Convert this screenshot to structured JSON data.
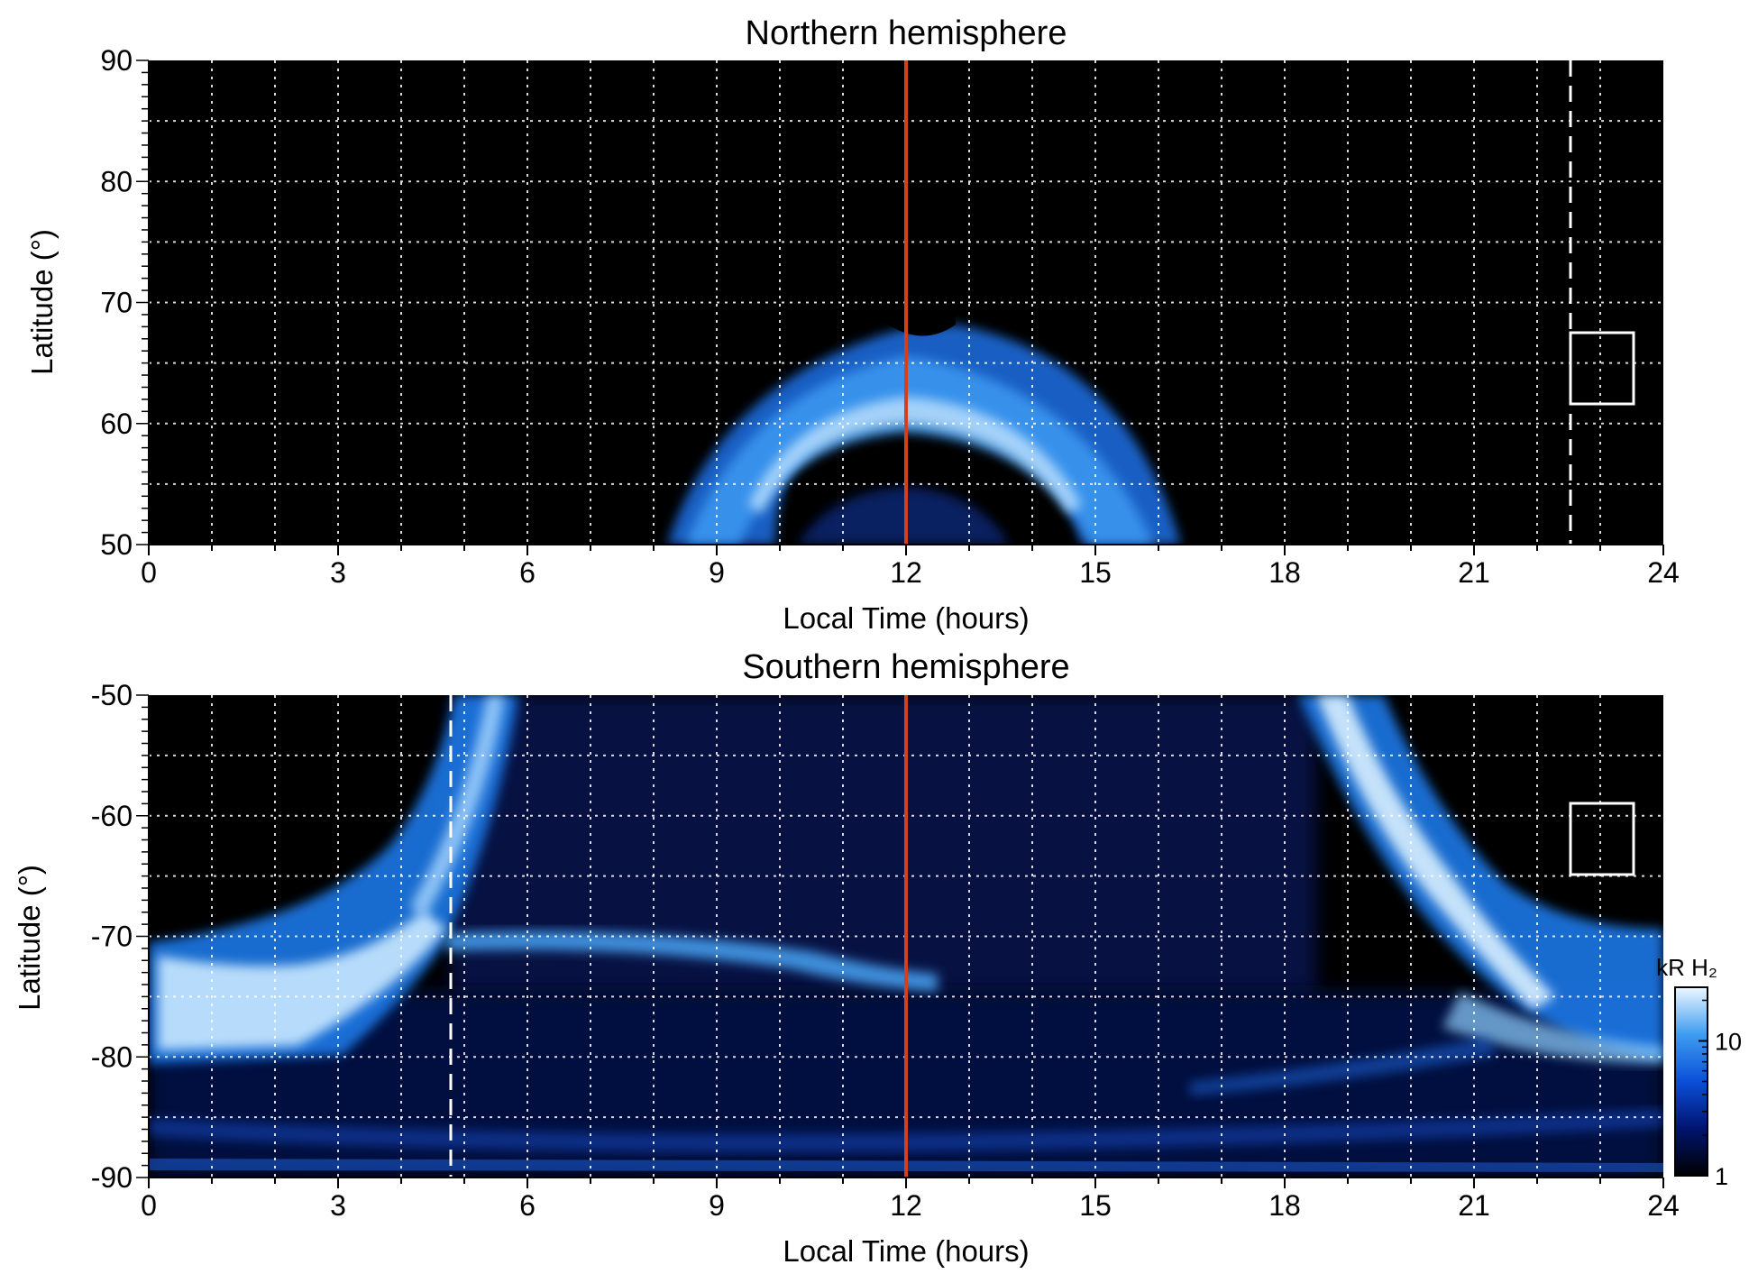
{
  "chart_data": [
    {
      "type": "heatmap",
      "title": "Northern hemisphere",
      "xlabel": "Local Time (hours)",
      "ylabel": "Latitude (°)",
      "xlim": [
        0,
        24
      ],
      "ylim": [
        50,
        90
      ],
      "xticks": [
        "0",
        "3",
        "6",
        "9",
        "12",
        "15",
        "18",
        "21",
        "24"
      ],
      "yticks": [
        "50",
        "60",
        "70",
        "80",
        "90"
      ],
      "grid": true,
      "noon_line_lt": 12,
      "noon_line_color": "#d2401c",
      "dashed_line_lt": 22.6,
      "box": {
        "lt": [
          22.6,
          23.6
        ],
        "lat": [
          61.5,
          67.5
        ]
      },
      "auroral_oval": {
        "center_lt": 12,
        "half_width_lt": 3.9,
        "peak_lat": 62,
        "width_lat": 5
      }
    },
    {
      "type": "heatmap",
      "title": "Southern hemisphere",
      "xlabel": "Local Time (hours)",
      "ylabel": "Latitude (°)",
      "xlim": [
        0,
        24
      ],
      "ylim": [
        -90,
        -50
      ],
      "xticks": [
        "0",
        "3",
        "6",
        "9",
        "12",
        "15",
        "18",
        "21",
        "24"
      ],
      "yticks": [
        "-50",
        "-60",
        "-70",
        "-80",
        "-90"
      ],
      "grid": true,
      "noon_line_lt": 12,
      "noon_line_color": "#d2401c",
      "dashed_line_lt": 4.8,
      "box": {
        "lt": [
          22.6,
          23.6
        ],
        "lat": [
          -65,
          -59
        ]
      },
      "auroral_oval": {
        "dawn_edge_lt": 4.8,
        "dusk_edge_lt": 18.8,
        "low_lat": -70,
        "high_lat": -80
      },
      "colorbar": {
        "label": "kR H₂",
        "ticks": [
          "1",
          "10"
        ],
        "scale": "log",
        "range": [
          1,
          25
        ]
      }
    }
  ]
}
